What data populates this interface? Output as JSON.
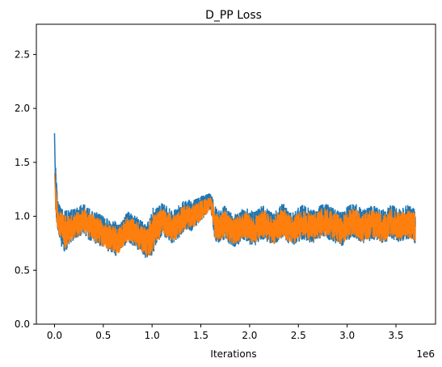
{
  "chart_data": {
    "type": "line",
    "title": "D_PP Loss",
    "xlabel": "Iterations",
    "ylabel": "",
    "x_offset_label": "1e6",
    "xlim": [
      -0.186,
      3.906
    ],
    "ylim": [
      0.0,
      2.78
    ],
    "xticks": [
      0.0,
      0.5,
      1.0,
      1.5,
      2.0,
      2.5,
      3.0,
      3.5
    ],
    "xtick_labels": [
      "0.0",
      "0.5",
      "1.0",
      "1.5",
      "2.0",
      "2.5",
      "3.0",
      "3.5"
    ],
    "yticks": [
      0.0,
      0.5,
      1.0,
      1.5,
      2.0,
      2.5
    ],
    "ytick_labels": [
      "0.0",
      "0.5",
      "1.0",
      "1.5",
      "2.0",
      "2.5"
    ],
    "grid": false,
    "legend": "none",
    "series": [
      {
        "color": "#1f77b4",
        "x": [
          0.0,
          0.01,
          0.03,
          0.06,
          0.1,
          0.15,
          0.2,
          0.25,
          0.3,
          0.35,
          0.4,
          0.45,
          0.5,
          0.55,
          0.6,
          0.65,
          0.7,
          0.75,
          0.8,
          0.85,
          0.9,
          0.95,
          1.0,
          1.05,
          1.1,
          1.15,
          1.2,
          1.25,
          1.3,
          1.35,
          1.4,
          1.45,
          1.5,
          1.55,
          1.6,
          1.65,
          1.7,
          1.75,
          1.8,
          1.85,
          1.9,
          1.95,
          2.0,
          2.05,
          2.1,
          2.15,
          2.2,
          2.25,
          2.3,
          2.35,
          2.4,
          2.45,
          2.5,
          2.55,
          2.6,
          2.65,
          2.7,
          2.75,
          2.8,
          2.85,
          2.9,
          2.95,
          3.0,
          3.05,
          3.1,
          3.15,
          3.2,
          3.25,
          3.3,
          3.35,
          3.4,
          3.45,
          3.5,
          3.55,
          3.6,
          3.65,
          3.7
        ],
        "y": [
          1.77,
          1.3,
          1.05,
          0.95,
          0.85,
          0.9,
          0.92,
          0.95,
          0.98,
          0.93,
          0.9,
          0.88,
          0.85,
          0.82,
          0.8,
          0.78,
          0.85,
          0.9,
          0.88,
          0.84,
          0.8,
          0.76,
          0.85,
          0.92,
          0.97,
          0.95,
          0.9,
          0.92,
          0.98,
          1.02,
          1.0,
          1.04,
          1.08,
          1.12,
          1.15,
          0.92,
          0.9,
          0.95,
          0.88,
          0.87,
          0.9,
          0.93,
          0.9,
          0.88,
          0.92,
          0.95,
          0.9,
          0.87,
          0.93,
          0.97,
          0.9,
          0.88,
          0.92,
          0.95,
          0.92,
          0.9,
          0.93,
          0.97,
          0.95,
          0.92,
          0.9,
          0.88,
          0.93,
          0.96,
          0.95,
          0.9,
          0.92,
          0.94,
          0.93,
          0.9,
          0.92,
          0.95,
          0.93,
          0.91,
          0.95,
          0.93,
          0.9
        ],
        "band_low": [
          0.95,
          0.92,
          0.78,
          0.65,
          0.58,
          0.7,
          0.75,
          0.78,
          0.8,
          0.75,
          0.72,
          0.7,
          0.68,
          0.66,
          0.62,
          0.58,
          0.68,
          0.72,
          0.7,
          0.66,
          0.64,
          0.58,
          0.57,
          0.72,
          0.78,
          0.76,
          0.74,
          0.76,
          0.8,
          0.84,
          0.82,
          0.86,
          0.9,
          0.95,
          0.98,
          0.72,
          0.74,
          0.76,
          0.72,
          0.7,
          0.74,
          0.76,
          0.72,
          0.7,
          0.74,
          0.76,
          0.72,
          0.7,
          0.74,
          0.78,
          0.72,
          0.7,
          0.74,
          0.76,
          0.74,
          0.72,
          0.76,
          0.78,
          0.76,
          0.74,
          0.72,
          0.7,
          0.74,
          0.78,
          0.76,
          0.72,
          0.74,
          0.76,
          0.74,
          0.72,
          0.74,
          0.76,
          0.74,
          0.72,
          0.76,
          0.74,
          0.7
        ],
        "band_high": [
          1.77,
          1.5,
          1.15,
          1.08,
          1.05,
          1.06,
          1.08,
          1.1,
          1.12,
          1.08,
          1.06,
          1.04,
          1.02,
          1.0,
          0.98,
          0.95,
          1.0,
          1.05,
          1.04,
          1.0,
          0.98,
          0.95,
          1.08,
          1.1,
          1.12,
          1.1,
          1.08,
          1.1,
          1.14,
          1.16,
          1.14,
          1.16,
          1.18,
          1.2,
          1.21,
          1.1,
          1.08,
          1.12,
          1.06,
          1.05,
          1.08,
          1.1,
          1.08,
          1.06,
          1.1,
          1.12,
          1.08,
          1.05,
          1.1,
          1.13,
          1.08,
          1.06,
          1.1,
          1.12,
          1.1,
          1.08,
          1.1,
          1.14,
          1.12,
          1.1,
          1.08,
          1.06,
          1.1,
          1.13,
          1.12,
          1.08,
          1.1,
          1.12,
          1.1,
          1.08,
          1.1,
          1.12,
          1.1,
          1.08,
          1.12,
          1.1,
          1.08
        ]
      },
      {
        "color": "#ff7f0e",
        "x": [
          0.0,
          0.01,
          0.03,
          0.06,
          0.1,
          0.15,
          0.2,
          0.25,
          0.3,
          0.35,
          0.4,
          0.45,
          0.5,
          0.55,
          0.6,
          0.65,
          0.7,
          0.75,
          0.8,
          0.85,
          0.9,
          0.95,
          1.0,
          1.05,
          1.1,
          1.15,
          1.2,
          1.25,
          1.3,
          1.35,
          1.4,
          1.45,
          1.5,
          1.55,
          1.6,
          1.65,
          1.7,
          1.75,
          1.8,
          1.85,
          1.9,
          1.95,
          2.0,
          2.05,
          2.1,
          2.15,
          2.2,
          2.25,
          2.3,
          2.35,
          2.4,
          2.45,
          2.5,
          2.55,
          2.6,
          2.65,
          2.7,
          2.75,
          2.8,
          2.85,
          2.9,
          2.95,
          3.0,
          3.05,
          3.1,
          3.15,
          3.2,
          3.25,
          3.3,
          3.35,
          3.4,
          3.45,
          3.5,
          3.55,
          3.6,
          3.65,
          3.7
        ],
        "y": [
          1.4,
          1.18,
          1.0,
          0.92,
          0.85,
          0.88,
          0.91,
          0.93,
          0.96,
          0.92,
          0.89,
          0.87,
          0.84,
          0.81,
          0.79,
          0.77,
          0.83,
          0.88,
          0.87,
          0.83,
          0.79,
          0.75,
          0.83,
          0.9,
          0.95,
          0.93,
          0.89,
          0.91,
          0.96,
          1.0,
          0.98,
          1.02,
          1.06,
          1.1,
          1.13,
          0.91,
          0.89,
          0.93,
          0.87,
          0.86,
          0.89,
          0.92,
          0.89,
          0.87,
          0.91,
          0.94,
          0.89,
          0.86,
          0.92,
          0.95,
          0.89,
          0.87,
          0.91,
          0.94,
          0.91,
          0.89,
          0.92,
          0.95,
          0.94,
          0.91,
          0.89,
          0.87,
          0.92,
          0.95,
          0.94,
          0.89,
          0.91,
          0.93,
          0.92,
          0.89,
          0.91,
          0.94,
          0.92,
          0.9,
          0.94,
          0.92,
          0.89
        ],
        "band_low": [
          1.2,
          1.0,
          0.88,
          0.72,
          0.62,
          0.74,
          0.78,
          0.8,
          0.82,
          0.78,
          0.75,
          0.73,
          0.71,
          0.69,
          0.66,
          0.62,
          0.71,
          0.75,
          0.73,
          0.69,
          0.67,
          0.62,
          0.62,
          0.75,
          0.8,
          0.78,
          0.77,
          0.79,
          0.83,
          0.86,
          0.85,
          0.88,
          0.92,
          0.97,
          1.0,
          0.75,
          0.77,
          0.79,
          0.75,
          0.73,
          0.77,
          0.79,
          0.75,
          0.73,
          0.77,
          0.79,
          0.75,
          0.73,
          0.77,
          0.8,
          0.75,
          0.73,
          0.77,
          0.79,
          0.77,
          0.75,
          0.79,
          0.8,
          0.79,
          0.77,
          0.75,
          0.73,
          0.77,
          0.8,
          0.79,
          0.75,
          0.77,
          0.79,
          0.77,
          0.75,
          0.77,
          0.79,
          0.77,
          0.75,
          0.79,
          0.77,
          0.73
        ],
        "band_high": [
          1.4,
          1.3,
          1.1,
          1.04,
          1.0,
          1.02,
          1.04,
          1.06,
          1.08,
          1.04,
          1.02,
          1.0,
          0.98,
          0.96,
          0.94,
          0.91,
          0.96,
          1.01,
          1.0,
          0.96,
          0.94,
          0.91,
          1.04,
          1.06,
          1.08,
          1.06,
          1.04,
          1.06,
          1.1,
          1.12,
          1.1,
          1.12,
          1.14,
          1.16,
          1.17,
          1.06,
          1.04,
          1.08,
          1.02,
          1.01,
          1.04,
          1.06,
          1.04,
          1.02,
          1.06,
          1.08,
          1.04,
          1.01,
          1.06,
          1.09,
          1.04,
          1.02,
          1.06,
          1.08,
          1.06,
          1.04,
          1.06,
          1.1,
          1.08,
          1.06,
          1.04,
          1.02,
          1.06,
          1.09,
          1.08,
          1.04,
          1.06,
          1.08,
          1.06,
          1.04,
          1.06,
          1.08,
          1.06,
          1.04,
          1.08,
          1.06,
          1.04
        ]
      }
    ]
  }
}
